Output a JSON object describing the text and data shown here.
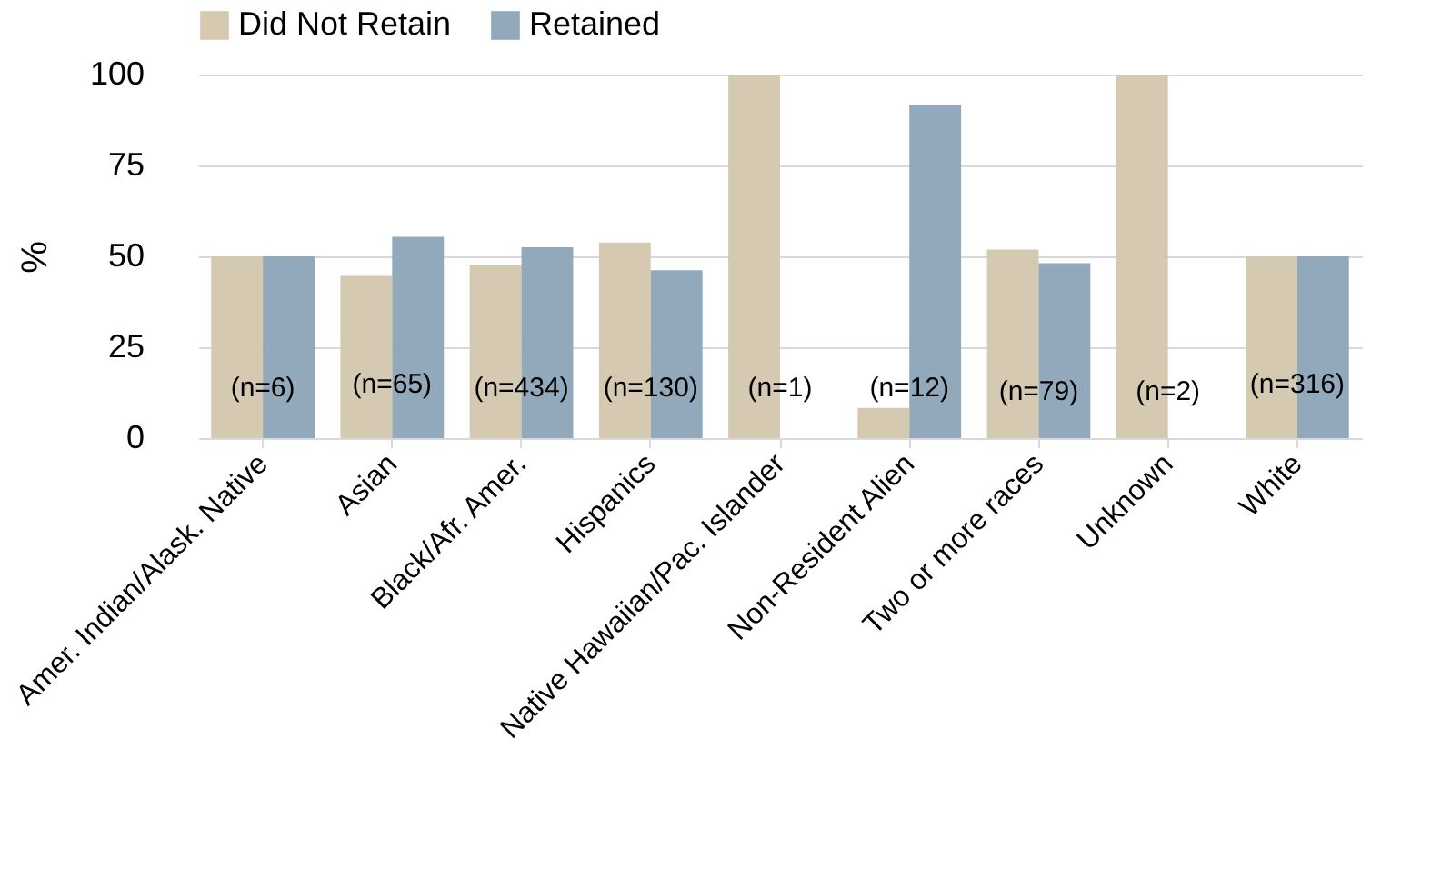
{
  "chart_data": {
    "type": "bar",
    "ylabel": "%",
    "categories": [
      "Amer. Indian/Alask. Native",
      "Asian",
      "Black/Afr. Amer.",
      "Hispanics",
      "Native Hawaiian/Pac. Islander",
      "Non-Resident Alien",
      "Two or more races",
      "Unknown",
      "White"
    ],
    "series": [
      {
        "name": "Did Not Retain",
        "color": "#d5c9b1",
        "values": [
          50,
          44.6,
          47.5,
          53.8,
          100,
          8.3,
          51.9,
          100,
          50
        ]
      },
      {
        "name": "Retained",
        "color": "#91a9ba",
        "values": [
          50,
          55.4,
          52.5,
          46.2,
          0,
          91.7,
          48.1,
          0,
          50
        ]
      }
    ],
    "ylim": [
      0,
      100
    ],
    "yticks": [
      0,
      25,
      50,
      75,
      100
    ],
    "grid": "y",
    "legend": "top",
    "annotations": [
      {
        "text": "(n=6)",
        "x": "Amer. Indian/Alask. Native",
        "y": 14
      },
      {
        "text": "(n=65)",
        "x": "Asian",
        "y": 15
      },
      {
        "text": "(n=434)",
        "x": "Black/Afr. Amer.",
        "y": 14
      },
      {
        "text": "(n=130)",
        "x": "Hispanics",
        "y": 14
      },
      {
        "text": "(n=1)",
        "x": "Native Hawaiian/Pac. Islander",
        "y": 14
      },
      {
        "text": "(n=12)",
        "x": "Non-Resident Alien",
        "y": 14
      },
      {
        "text": "(n=79)",
        "x": "Two or more races",
        "y": 13
      },
      {
        "text": "(n=2)",
        "x": "Unknown",
        "y": 13
      },
      {
        "text": "(n=316)",
        "x": "White",
        "y": 15
      }
    ]
  }
}
